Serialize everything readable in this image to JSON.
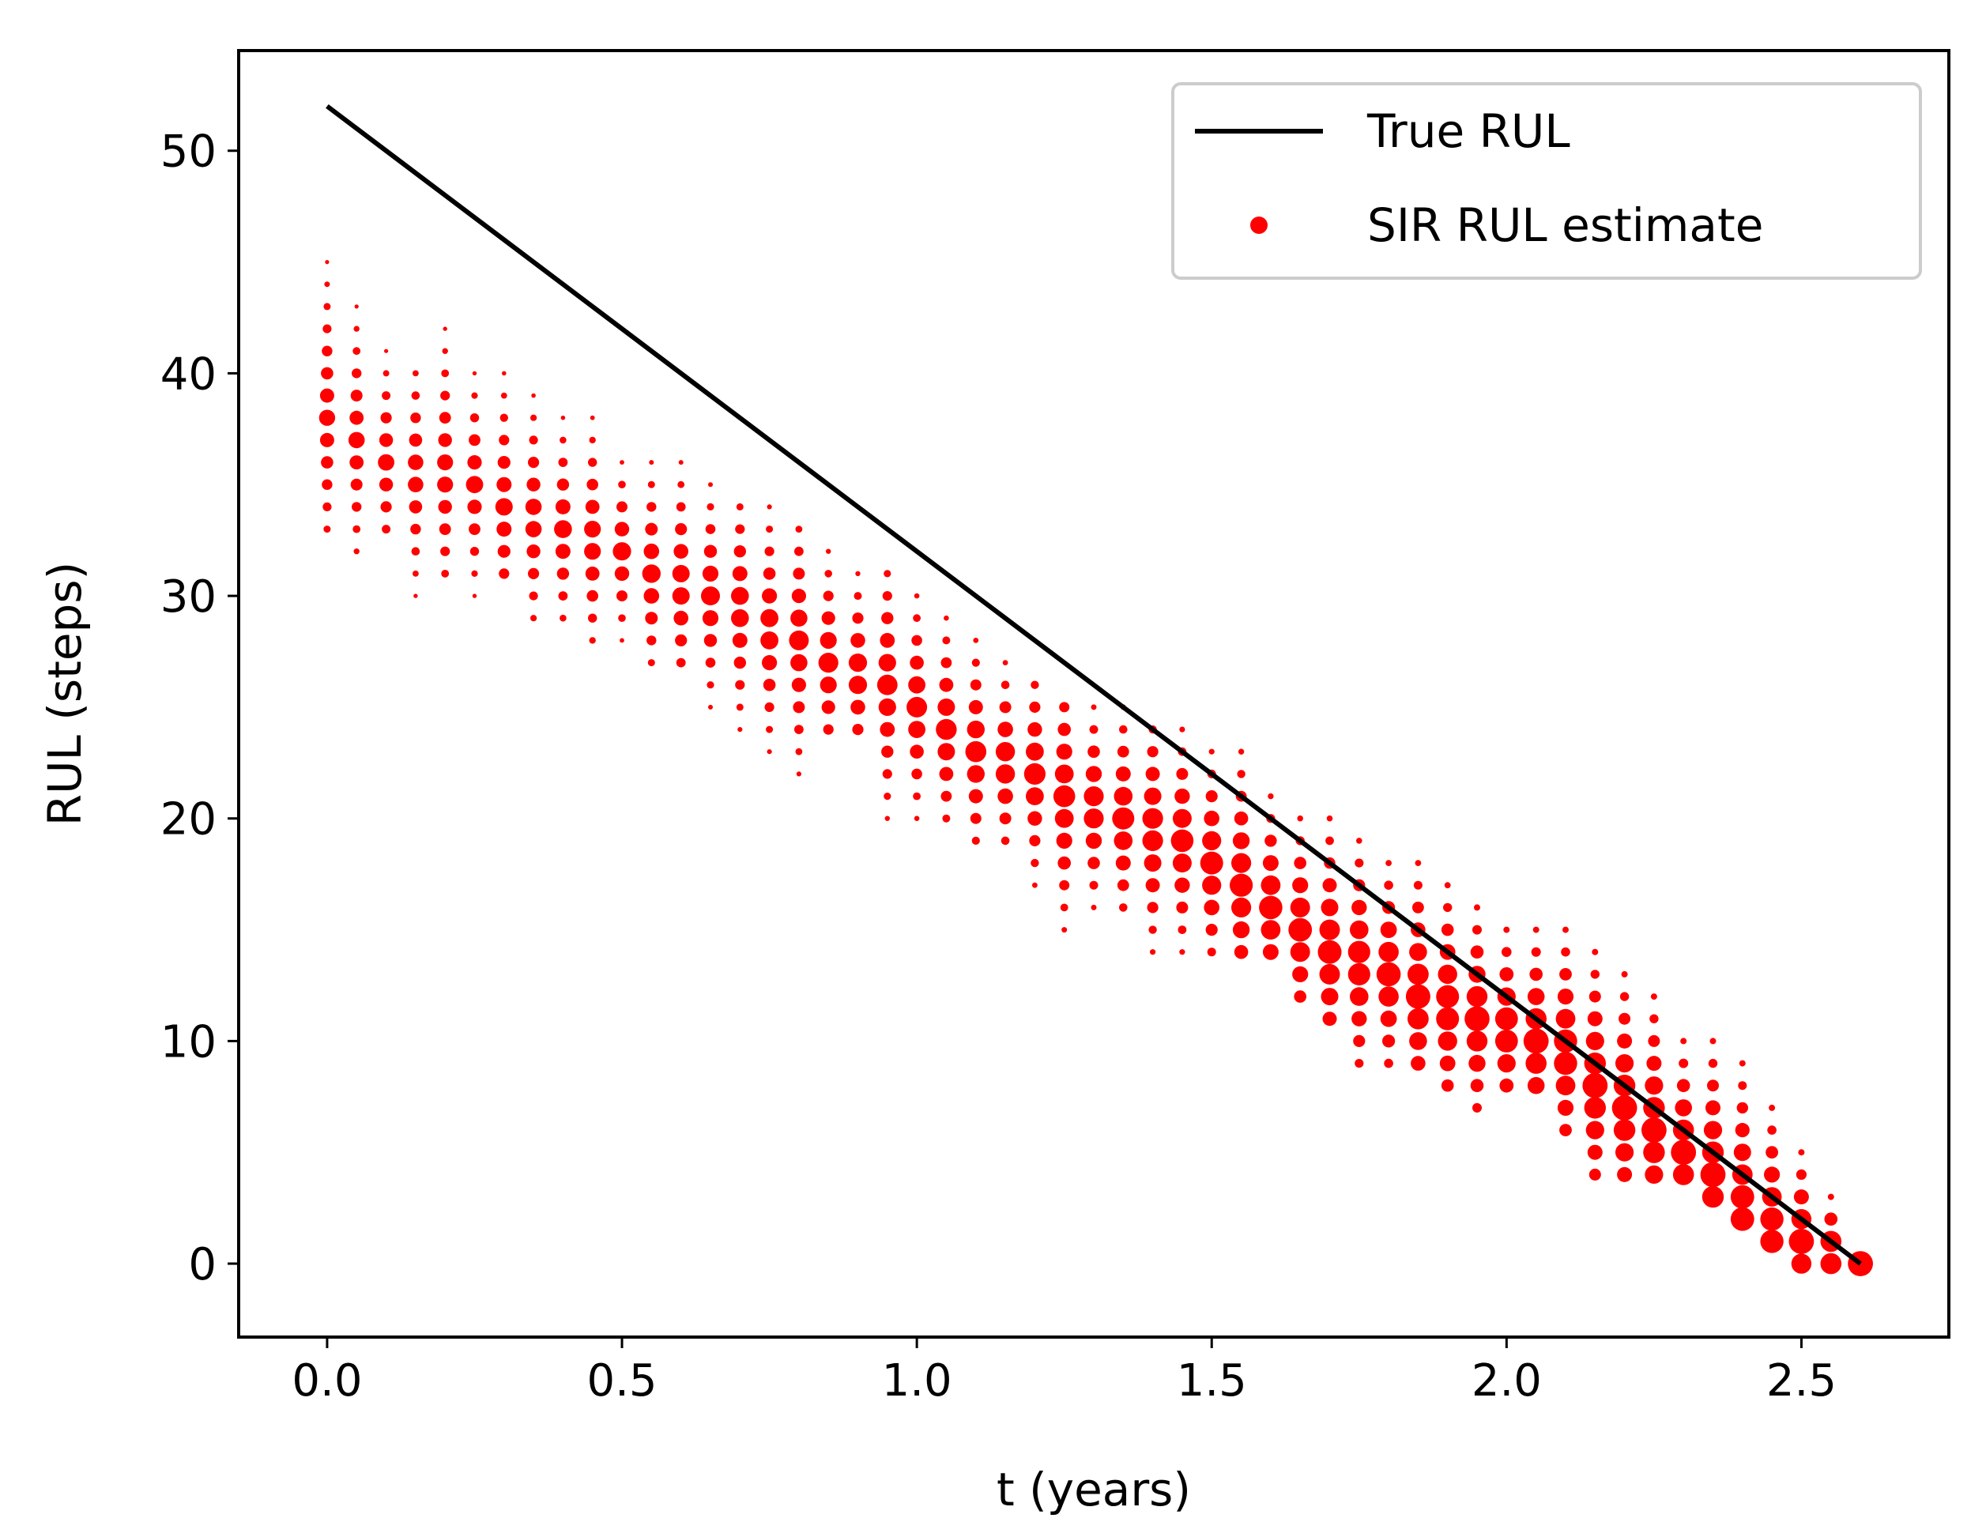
{
  "chart_data": {
    "type": "scatter",
    "title": "",
    "xlabel": "t (years)",
    "ylabel": "RUL (steps)",
    "xlim": [
      -0.15,
      2.75
    ],
    "ylim": [
      -3.3,
      54.5
    ],
    "xticks": [
      0.0,
      0.5,
      1.0,
      1.5,
      2.0,
      2.5
    ],
    "xtick_labels": [
      "0.0",
      "0.5",
      "1.0",
      "1.5",
      "2.0",
      "2.5"
    ],
    "yticks": [
      0,
      10,
      20,
      30,
      40,
      50
    ],
    "ytick_labels": [
      "0",
      "10",
      "20",
      "30",
      "40",
      "50"
    ],
    "grid": false,
    "legend": {
      "position": "top-right",
      "entries": [
        {
          "label": "True RUL",
          "marker": "line",
          "color": "#000000"
        },
        {
          "label": "SIR RUL estimate",
          "marker": "dot",
          "color": "#ff0000"
        }
      ]
    },
    "series": [
      {
        "name": "True RUL",
        "kind": "line",
        "color": "#000000",
        "x": [
          0.0,
          2.6
        ],
        "y": [
          52,
          0
        ]
      },
      {
        "name": "SIR RUL estimate",
        "kind": "scatter",
        "color": "#ff0000",
        "step": 0.05,
        "first_t": 0.0,
        "t_count": 53,
        "center": [
          38,
          37,
          36,
          35.5,
          35.5,
          35,
          34,
          33.5,
          33,
          32.5,
          32,
          31,
          30.5,
          30,
          29.5,
          28.5,
          28,
          27,
          26.5,
          26,
          25,
          24,
          23,
          22.5,
          22,
          21,
          20.5,
          20,
          19.5,
          19,
          18,
          17,
          16,
          15,
          14,
          13.5,
          13,
          12,
          11.5,
          11,
          10.5,
          10,
          9.5,
          8,
          7,
          6,
          5,
          4,
          2.5,
          1.5,
          1,
          0.5,
          0
        ],
        "low": [
          33,
          32,
          33,
          30,
          31,
          30,
          31,
          29,
          29,
          28,
          28,
          27,
          27,
          25,
          24,
          23,
          22,
          24,
          24,
          20,
          20,
          20,
          19,
          19,
          17,
          15,
          16,
          16,
          14,
          14,
          14,
          14,
          14,
          12,
          11,
          9,
          9,
          9,
          8,
          7,
          8,
          8,
          6,
          4,
          4,
          4,
          4,
          3,
          2,
          1,
          0,
          0,
          0
        ],
        "high": [
          45,
          43,
          41,
          40,
          42,
          40,
          40,
          39,
          38,
          38,
          36,
          36,
          36,
          35,
          34,
          34,
          33,
          32,
          31,
          31,
          30,
          29,
          28,
          27,
          26,
          25,
          25,
          25,
          24,
          24,
          23,
          23,
          21,
          20,
          20,
          19,
          18,
          18,
          17,
          16,
          15,
          15,
          15,
          14,
          13,
          12,
          10,
          10,
          9,
          7,
          5,
          3,
          0
        ]
      }
    ]
  }
}
